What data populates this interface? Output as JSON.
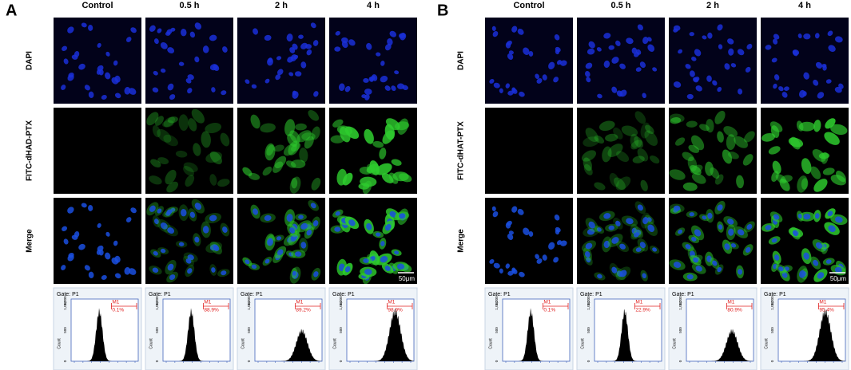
{
  "panels": [
    {
      "label": "A",
      "columns": [
        "Control",
        "0.5 h",
        "2 h",
        "4 h"
      ],
      "rows": [
        "DAPI",
        "FITC-dHAD-PTX",
        "Merge"
      ],
      "scale_bar": "50μm",
      "y_axis_label": "Count",
      "y_ticks": [
        "0",
        "500",
        "1,000",
        "1,200"
      ],
      "histograms": [
        {
          "gate": "Gate: P1",
          "marker": "M1",
          "percent": "0.1%"
        },
        {
          "gate": "Gate: P1",
          "marker": "M1",
          "percent": "88.9%"
        },
        {
          "gate": "Gate: P1",
          "marker": "M1",
          "percent": "89.2%"
        },
        {
          "gate": "Gate: P1",
          "marker": "M1",
          "percent": "98.9%"
        }
      ]
    },
    {
      "label": "B",
      "columns": [
        "Control",
        "0.5 h",
        "2 h",
        "4 h"
      ],
      "rows": [
        "DAPI",
        "FITC-dHAT-PTX",
        "Merge"
      ],
      "scale_bar": "50μm",
      "y_axis_label": "Count",
      "y_ticks": [
        "0",
        "500",
        "1,000",
        "1,200"
      ],
      "histograms": [
        {
          "gate": "Gate: P1",
          "marker": "M1",
          "percent": "0.1%"
        },
        {
          "gate": "Gate: P1",
          "marker": "M1",
          "percent": "22.9%"
        },
        {
          "gate": "Gate: P1",
          "marker": "M1",
          "percent": "80.9%"
        },
        {
          "gate": "Gate: P1",
          "marker": "M1",
          "percent": "95.4%"
        }
      ]
    }
  ]
}
